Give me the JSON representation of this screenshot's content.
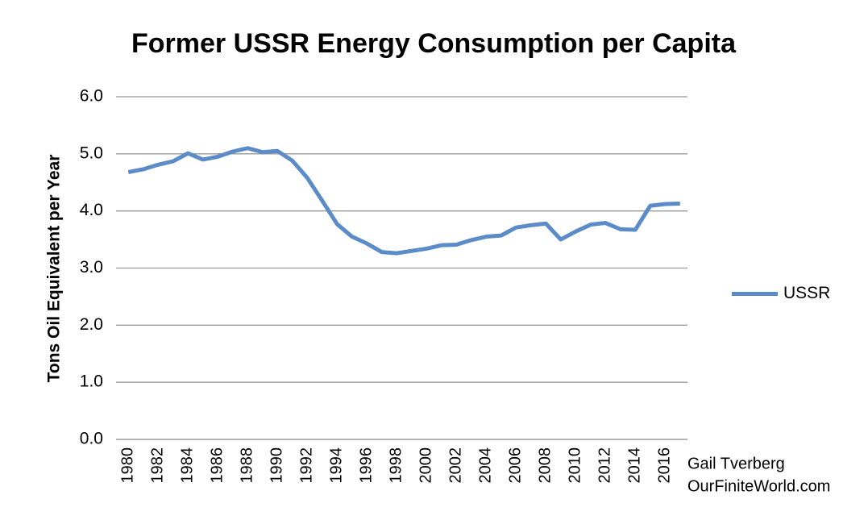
{
  "chart_data": {
    "type": "line",
    "title": "Former USSR Energy Consumption per Capita",
    "y_label": "Tons Oil Equivalent per Year",
    "annotations": [
      "Gail Tverberg",
      "OurFiniteWorld.com"
    ],
    "categories": [
      "1980",
      null,
      "1982",
      null,
      "1984",
      null,
      "1986",
      null,
      "1988",
      null,
      "1990",
      null,
      "1992",
      null,
      "1994",
      null,
      "1996",
      null,
      "1998",
      null,
      "2000",
      null,
      "2002",
      null,
      "2004",
      null,
      "2006",
      null,
      "2008",
      null,
      "2010",
      null,
      "2012",
      null,
      "2014",
      null,
      "2016",
      null
    ],
    "series": [
      {
        "name": "USSR",
        "color": "#5b8bc9",
        "values": [
          4.68,
          4.73,
          4.81,
          4.87,
          5.01,
          4.9,
          4.95,
          5.04,
          5.1,
          5.03,
          5.05,
          4.88,
          4.58,
          4.18,
          3.77,
          3.55,
          3.43,
          3.28,
          3.26,
          3.3,
          3.34,
          3.4,
          3.41,
          3.49,
          3.55,
          3.57,
          3.71,
          3.75,
          3.78,
          3.5,
          3.64,
          3.76,
          3.79,
          3.68,
          3.67,
          4.09,
          4.12,
          4.13
        ]
      }
    ],
    "ylim": [
      0,
      6
    ],
    "yticks": [
      {
        "value": 0,
        "label": "0.0"
      },
      {
        "value": 1,
        "label": "1.0"
      },
      {
        "value": 2,
        "label": "2.0"
      },
      {
        "value": 3,
        "label": "3.0"
      },
      {
        "value": 4,
        "label": "4.0"
      },
      {
        "value": 5,
        "label": "5.0"
      },
      {
        "value": 6,
        "label": "6.0"
      }
    ],
    "grid": true,
    "legend": "right"
  }
}
